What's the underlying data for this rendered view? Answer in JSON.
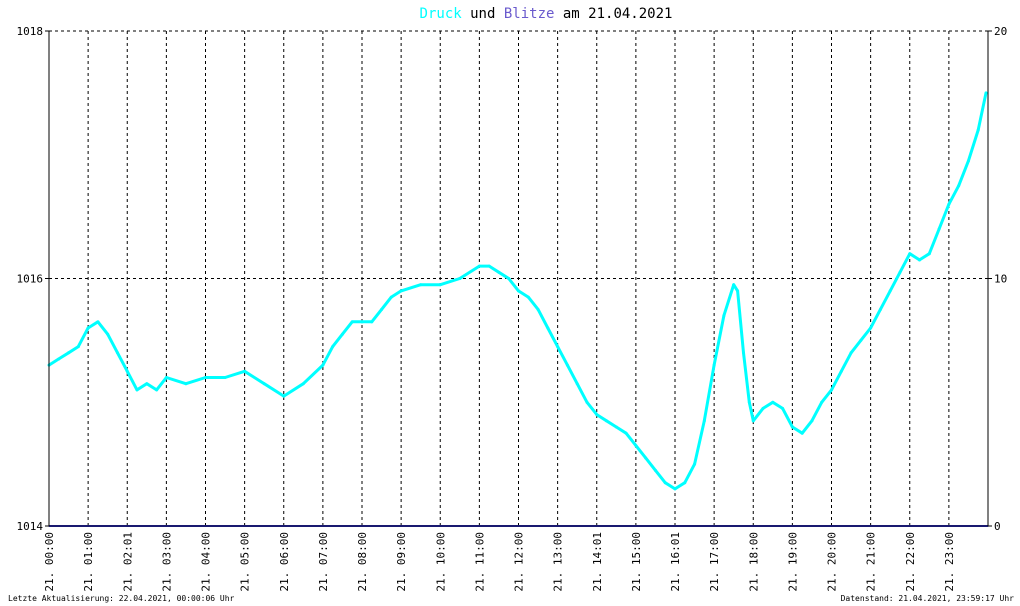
{
  "chart_data": {
    "type": "line",
    "title_parts": [
      {
        "text": "Druck",
        "color": "#00ffff"
      },
      {
        "text": " und ",
        "color": "#000000"
      },
      {
        "text": "Blitze",
        "color": "#6a5acd"
      },
      {
        "text": " am 21.04.2021",
        "color": "#000000"
      }
    ],
    "y_left": {
      "min": 1014,
      "max": 1018,
      "ticks": [
        "1014",
        "1016",
        "1018"
      ]
    },
    "y_right": {
      "min": 0,
      "max": 20,
      "ticks": [
        "0",
        "10",
        "20"
      ]
    },
    "x_ticks": [
      "21. 00:00",
      "21. 01:00",
      "21. 02:01",
      "21. 03:00",
      "21. 04:00",
      "21. 05:00",
      "21. 06:00",
      "21. 07:00",
      "21. 08:00",
      "21. 09:00",
      "21. 10:00",
      "21. 11:00",
      "21. 12:00",
      "21. 13:00",
      "21. 14:01",
      "21. 15:00",
      "21. 16:01",
      "21. 17:00",
      "21. 18:00",
      "21. 19:00",
      "21. 20:00",
      "21. 21:00",
      "21. 22:00",
      "21. 23:00"
    ],
    "grid": true,
    "series": [
      {
        "color": "#00ffff",
        "axis": "left",
        "x_hours": [
          0,
          0.25,
          0.5,
          0.75,
          1,
          1.25,
          1.5,
          1.75,
          2,
          2.25,
          2.5,
          2.75,
          3,
          3.5,
          4,
          4.5,
          5,
          5.5,
          6,
          6.5,
          7,
          7.25,
          7.5,
          7.75,
          8,
          8.25,
          8.5,
          8.75,
          9,
          9.5,
          10,
          10.5,
          11,
          11.25,
          11.5,
          11.75,
          12,
          12.25,
          12.5,
          12.75,
          13,
          13.25,
          13.5,
          13.75,
          14,
          14.25,
          14.5,
          14.75,
          15,
          15.25,
          15.5,
          15.75,
          16,
          16.25,
          16.5,
          16.75,
          17,
          17.25,
          17.5,
          17.6,
          17.75,
          17.9,
          18,
          18.25,
          18.5,
          18.75,
          19,
          19.25,
          19.5,
          19.75,
          20,
          20.25,
          20.5,
          20.75,
          21,
          21.25,
          21.5,
          21.75,
          22,
          22.25,
          22.5,
          22.75,
          23,
          23.25,
          23.5,
          23.75,
          23.95
        ],
        "values": [
          1015.3,
          1015.35,
          1015.4,
          1015.45,
          1015.6,
          1015.65,
          1015.55,
          1015.4,
          1015.25,
          1015.1,
          1015.15,
          1015.1,
          1015.2,
          1015.15,
          1015.2,
          1015.2,
          1015.25,
          1015.15,
          1015.05,
          1015.15,
          1015.3,
          1015.45,
          1015.55,
          1015.65,
          1015.65,
          1015.65,
          1015.75,
          1015.85,
          1015.9,
          1015.95,
          1015.95,
          1016.0,
          1016.1,
          1016.1,
          1016.05,
          1016.0,
          1015.9,
          1015.85,
          1015.75,
          1015.6,
          1015.45,
          1015.3,
          1015.15,
          1015.0,
          1014.9,
          1014.85,
          1014.8,
          1014.75,
          1014.65,
          1014.55,
          1014.45,
          1014.35,
          1014.3,
          1014.35,
          1014.5,
          1014.85,
          1015.3,
          1015.7,
          1015.95,
          1015.9,
          1015.4,
          1015.0,
          1014.85,
          1014.95,
          1015.0,
          1014.95,
          1014.8,
          1014.75,
          1014.85,
          1015.0,
          1015.1,
          1015.25,
          1015.4,
          1015.5,
          1015.6,
          1015.75,
          1015.9,
          1016.05,
          1016.2,
          1016.15,
          1016.2,
          1016.4,
          1016.6,
          1016.75,
          1016.95,
          1017.2,
          1017.5
        ]
      },
      {
        "color": "#191970",
        "axis": "right",
        "x_hours": [
          0,
          24
        ],
        "values": [
          0,
          0
        ]
      }
    ]
  },
  "footer": {
    "left": "Letzte Aktualisierung: 22.04.2021, 00:00:06 Uhr",
    "right": "Datenstand: 21.04.2021, 23:59:17 Uhr"
  }
}
